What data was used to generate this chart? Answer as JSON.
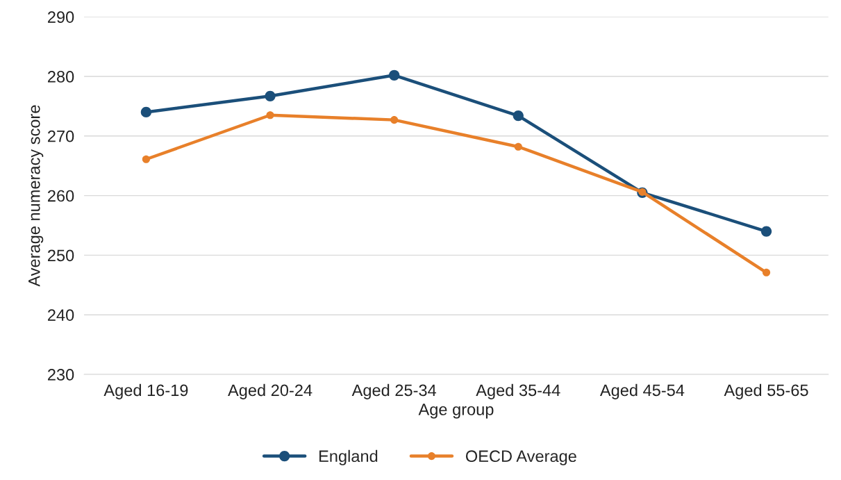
{
  "chart_data": {
    "type": "line",
    "xlabel": "Age group",
    "ylabel": "Average numeracy score",
    "categories": [
      "Aged 16-19",
      "Aged 20-24",
      "Aged 25-34",
      "Aged 35-44",
      "Aged 45-54",
      "Aged 55-65"
    ],
    "series": [
      {
        "name": "England",
        "color": "#1b4f7a",
        "values": [
          274.0,
          276.7,
          280.2,
          273.4,
          260.5,
          254.0
        ]
      },
      {
        "name": "OECD Average",
        "color": "#e8802a",
        "values": [
          266.1,
          273.5,
          272.7,
          268.2,
          260.6,
          247.1
        ]
      }
    ],
    "ylim": [
      230,
      290
    ],
    "yticks": [
      230,
      240,
      250,
      260,
      270,
      280,
      290
    ],
    "grid": "y",
    "legend": "bottom",
    "marker": "circle",
    "line_style": "solid"
  }
}
